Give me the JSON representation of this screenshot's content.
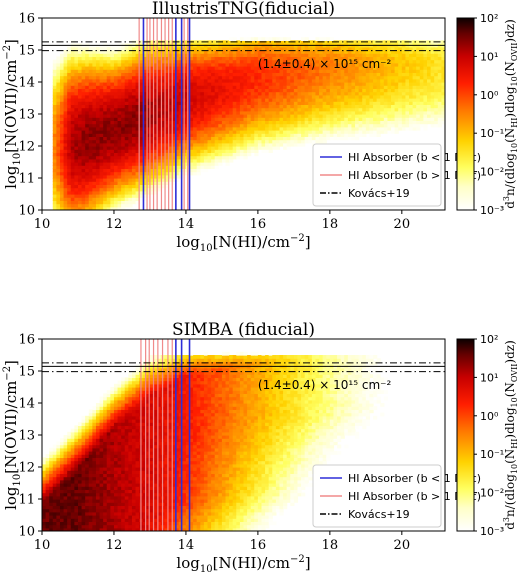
{
  "chart_data": [
    {
      "type": "heatmap",
      "title": "IllustrisTNG(fiducial)",
      "xlabel": "log10[N(HI)/cm^-2]",
      "ylabel": "log10[N(OVII)/cm^-2]",
      "xlim": [
        10,
        21.2
      ],
      "ylim": [
        10,
        16
      ],
      "xticks": [
        "10",
        "12",
        "14",
        "16",
        "18",
        "20"
      ],
      "yticks": [
        "10",
        "11",
        "12",
        "13",
        "14",
        "15",
        "16"
      ],
      "colorbar": {
        "label": "d³n/(dlog10(NHI)dlog10(NOVII)dz)",
        "scale": "log",
        "range": [
          0.001,
          100
        ],
        "ticks": [
          "10⁻³",
          "10⁻²",
          "10⁻¹",
          "10⁰",
          "10¹",
          "10²"
        ],
        "colormap": "hot_r"
      },
      "distribution": {
        "ridge_y_at_x": [
          [
            10.5,
            12.0
          ],
          [
            11.0,
            12.1
          ],
          [
            12.0,
            12.5
          ],
          [
            13.0,
            13.0
          ],
          [
            14.0,
            13.5
          ],
          [
            16.0,
            14.2
          ],
          [
            18.0,
            14.5
          ],
          [
            20.0,
            14.6
          ]
        ],
        "peak_region": {
          "x": [
            10.8,
            13.2
          ],
          "y": [
            11.2,
            13.5
          ]
        }
      },
      "vlines_lt1": [
        12.82,
        13.72,
        13.88,
        14.1
      ],
      "vlines_gt1": [
        12.7,
        12.92,
        13.0,
        13.1,
        13.2,
        13.32,
        13.42,
        13.52,
        13.62,
        13.95,
        14.05
      ],
      "hline_center": 15.146,
      "hline_band": [
        14.98,
        15.255
      ],
      "annotation": "(1.4±0.4) × 10¹⁵ cm⁻²",
      "legend": {
        "position": "lower right",
        "entries": [
          {
            "label": "HI Absorber (b < 1 Mpc)",
            "color": "#2e2ed8",
            "style": "solid"
          },
          {
            "label": "HI Absorber (b > 1 Mpc)",
            "color": "#f08a8a",
            "style": "solid"
          },
          {
            "label": "Kovács+19",
            "color": "#000000",
            "style": "dashdot"
          }
        ]
      }
    },
    {
      "type": "heatmap",
      "title": "SIMBA (fiducial)",
      "xlabel": "log10[N(HI)/cm^-2]",
      "ylabel": "log10[N(OVII)/cm^-2]",
      "xlim": [
        10,
        21.2
      ],
      "ylim": [
        10,
        16
      ],
      "xticks": [
        "10",
        "12",
        "14",
        "16",
        "18",
        "20"
      ],
      "yticks": [
        "10",
        "11",
        "12",
        "13",
        "14",
        "15",
        "16"
      ],
      "colorbar": {
        "label": "d³n/(dlog10(NHI)dlog10(NOVII)dz)",
        "scale": "log",
        "range": [
          0.001,
          100
        ],
        "ticks": [
          "10⁻³",
          "10⁻²",
          "10⁻¹",
          "10⁰",
          "10¹",
          "10²"
        ],
        "colormap": "hot_r"
      },
      "distribution": {
        "ridge_y_at_x": [
          [
            10.0,
            10.4
          ],
          [
            11.0,
            11.5
          ],
          [
            12.0,
            12.8
          ],
          [
            13.0,
            13.8
          ],
          [
            14.0,
            14.4
          ],
          [
            16.0,
            14.8
          ],
          [
            18.0,
            14.9
          ],
          [
            20.0,
            14.9
          ]
        ],
        "peak_region": {
          "x": [
            10.0,
            12.5
          ],
          "y": [
            10.0,
            12.0
          ]
        }
      },
      "vlines_lt1": [
        13.72,
        13.88,
        14.1
      ],
      "vlines_gt1": [
        12.75,
        12.88,
        12.98,
        13.1,
        13.22,
        13.35,
        13.5,
        13.62
      ],
      "hline_center": 15.146,
      "hline_band": [
        14.98,
        15.255
      ],
      "annotation": "(1.4±0.4) × 10¹⁵ cm⁻²",
      "legend": {
        "position": "lower right",
        "entries": [
          {
            "label": "HI Absorber (b < 1 Mpc)",
            "color": "#2e2ed8",
            "style": "solid"
          },
          {
            "label": "HI Absorber (b > 1 Mpc)",
            "color": "#f08a8a",
            "style": "solid"
          },
          {
            "label": "Kovács+19",
            "color": "#000000",
            "style": "dashdot"
          }
        ]
      }
    }
  ]
}
